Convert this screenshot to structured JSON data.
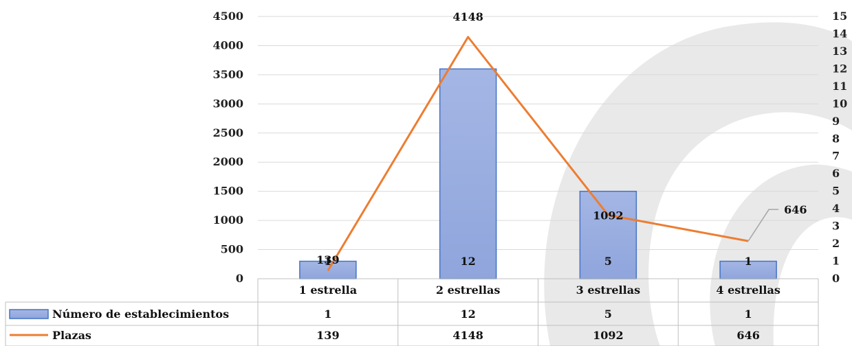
{
  "chart_data": {
    "type": "bar",
    "categories": [
      "1 estrella",
      "2 estrellas",
      "3 estrellas",
      "4 estrellas"
    ],
    "series": [
      {
        "name": "Número de establecimientos",
        "values": [
          1,
          12,
          5,
          1
        ],
        "axis": "right",
        "kind": "bar",
        "color": "#8FA5DC"
      },
      {
        "name": "Plazas",
        "values": [
          139,
          4148,
          1092,
          646
        ],
        "axis": "left",
        "kind": "line",
        "color": "#ED7D31"
      }
    ],
    "y_left": {
      "ticks": [
        "0",
        "500",
        "1000",
        "1500",
        "2000",
        "2500",
        "3000",
        "3500",
        "4000",
        "4500"
      ],
      "range": [
        0,
        4500
      ]
    },
    "y_right": {
      "ticks": [
        "0",
        "1",
        "2",
        "3",
        "4",
        "5",
        "6",
        "7",
        "8",
        "9",
        "10",
        "11",
        "12",
        "13",
        "14",
        "15"
      ],
      "range": [
        0,
        15
      ]
    },
    "grid": true,
    "legend": "data-table-bottom",
    "colors": {
      "bar_border": "#4472C4",
      "grid": "#d9d9d9",
      "table_border": "#bfbfbf"
    }
  }
}
